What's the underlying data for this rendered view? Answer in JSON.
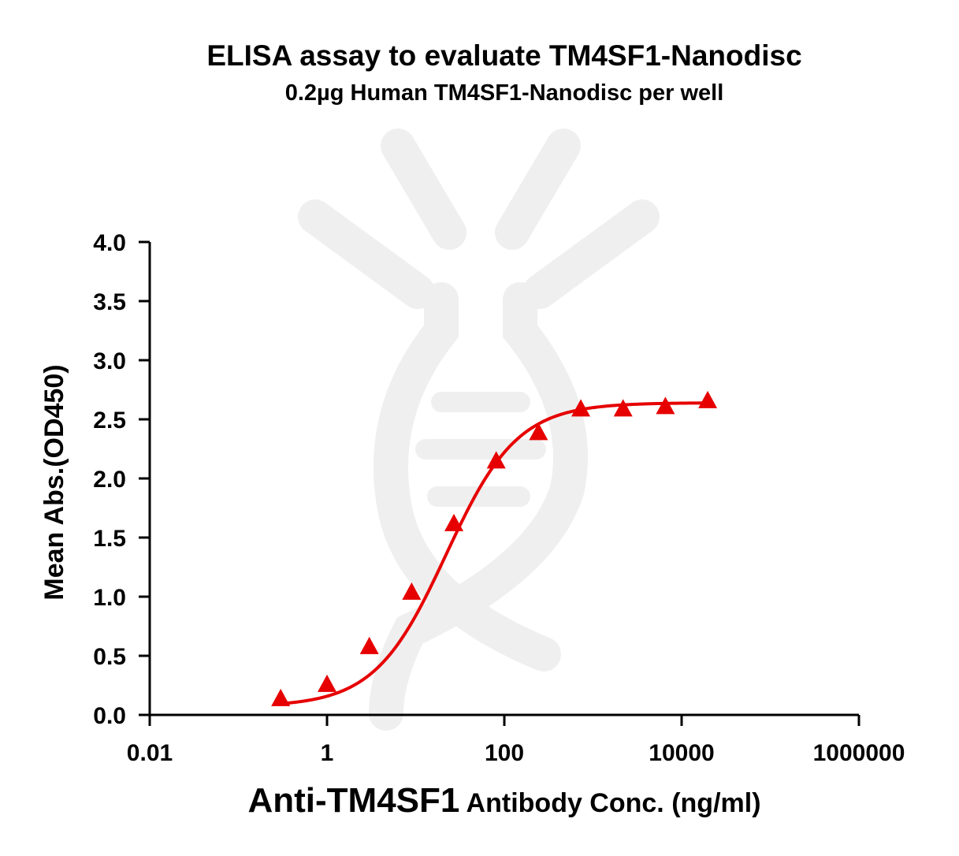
{
  "chart_data": {
    "type": "scatter",
    "title": "ELISA assay to evaluate TM4SF1-Nanodisc",
    "subtitle": "0.2µg Human TM4SF1-Nanodisc per well",
    "xlabel_bold": "Anti-TM4SF1",
    "xlabel_rest": " Antibody Conc. (ng/ml)",
    "ylabel": "Mean Abs.(OD450)",
    "x_scale": "log",
    "xlim": [
      0.01,
      1000000
    ],
    "ylim": [
      0,
      4
    ],
    "x_ticks": [
      0.01,
      1,
      100,
      10000,
      1000000
    ],
    "x_tick_labels": [
      "0.01",
      "1",
      "100",
      "10000",
      "1000000"
    ],
    "y_ticks": [
      0,
      0.5,
      1,
      1.5,
      2,
      2.5,
      3,
      3.5,
      4
    ],
    "y_tick_labels": [
      "0.0",
      "0.5",
      "1.0",
      "1.5",
      "2.0",
      "2.5",
      "3.0",
      "3.5",
      "4.0"
    ],
    "grid": false,
    "series": [
      {
        "color": "#e60000",
        "marker": "triangle",
        "fit": "4PL",
        "x": [
          0.3,
          1,
          3,
          9,
          27,
          81,
          243,
          729,
          2187,
          6561,
          19683
        ],
        "y": [
          0.13,
          0.25,
          0.57,
          1.03,
          1.61,
          2.14,
          2.38,
          2.58,
          2.58,
          2.6,
          2.65
        ]
      }
    ]
  }
}
